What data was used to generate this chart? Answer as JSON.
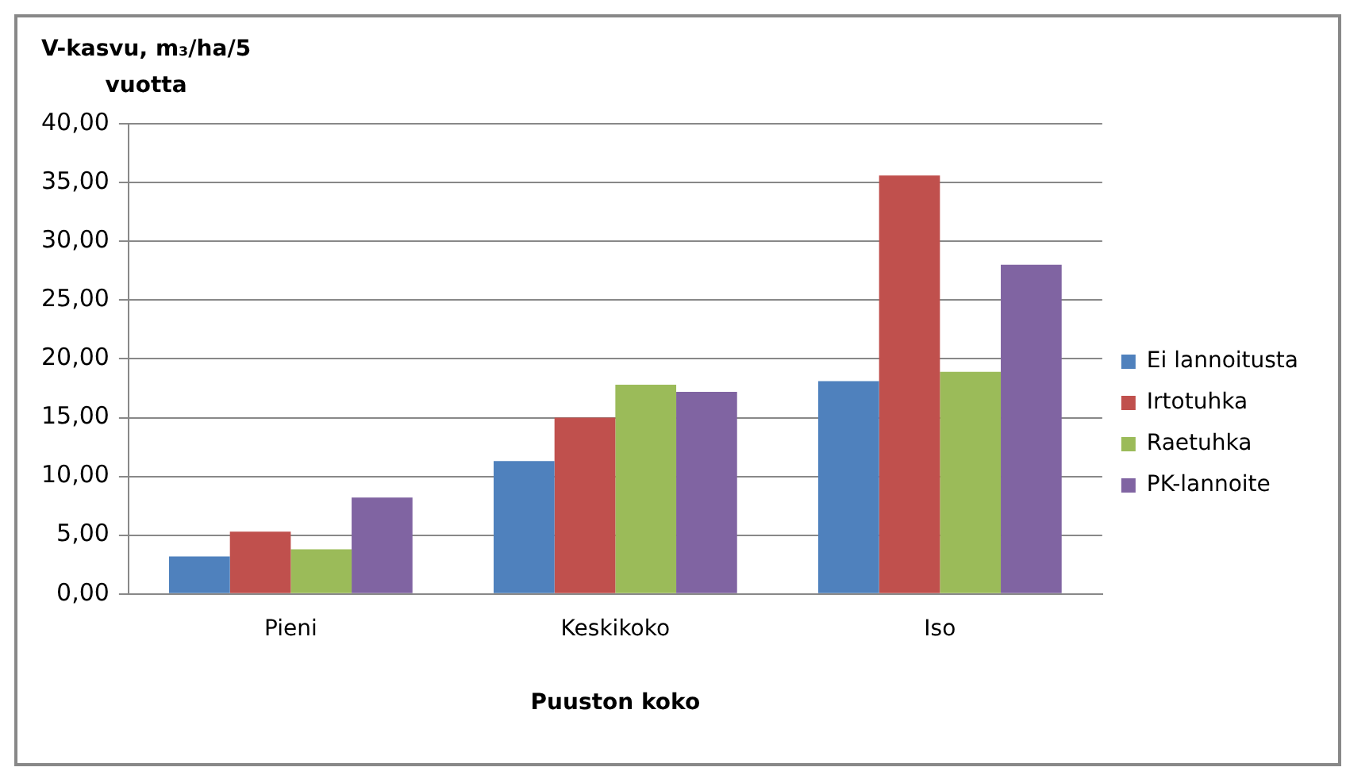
{
  "chart_data": {
    "type": "bar",
    "ylabel": "V-kasvu, m₃/ha/5 vuotta",
    "xlabel": "Puuston koko",
    "categories": [
      "Pieni",
      "Keskikoko",
      "Iso"
    ],
    "series": [
      {
        "name": "Ei lannoitusta",
        "color": "#4f81bd",
        "values": [
          3.2,
          11.3,
          18.1
        ]
      },
      {
        "name": "Irtotuhka",
        "color": "#c0504d",
        "values": [
          5.3,
          15.0,
          35.6
        ]
      },
      {
        "name": "Raetuhka",
        "color": "#9bbb59",
        "values": [
          3.8,
          17.8,
          18.9
        ]
      },
      {
        "name": "PK-lannoite",
        "color": "#8064a2",
        "values": [
          8.2,
          17.2,
          28.0
        ]
      }
    ],
    "ylim": [
      0,
      40
    ],
    "yticks": [
      {
        "value": 0,
        "label": "0,00"
      },
      {
        "value": 5,
        "label": "5,00"
      },
      {
        "value": 10,
        "label": "10,00"
      },
      {
        "value": 15,
        "label": "15,00"
      },
      {
        "value": 20,
        "label": "20,00"
      },
      {
        "value": 25,
        "label": "25,00"
      },
      {
        "value": 30,
        "label": "30,00"
      },
      {
        "value": 35,
        "label": "35,00"
      },
      {
        "value": 40,
        "label": "40,00"
      }
    ],
    "grid": "y",
    "legend": "right"
  }
}
